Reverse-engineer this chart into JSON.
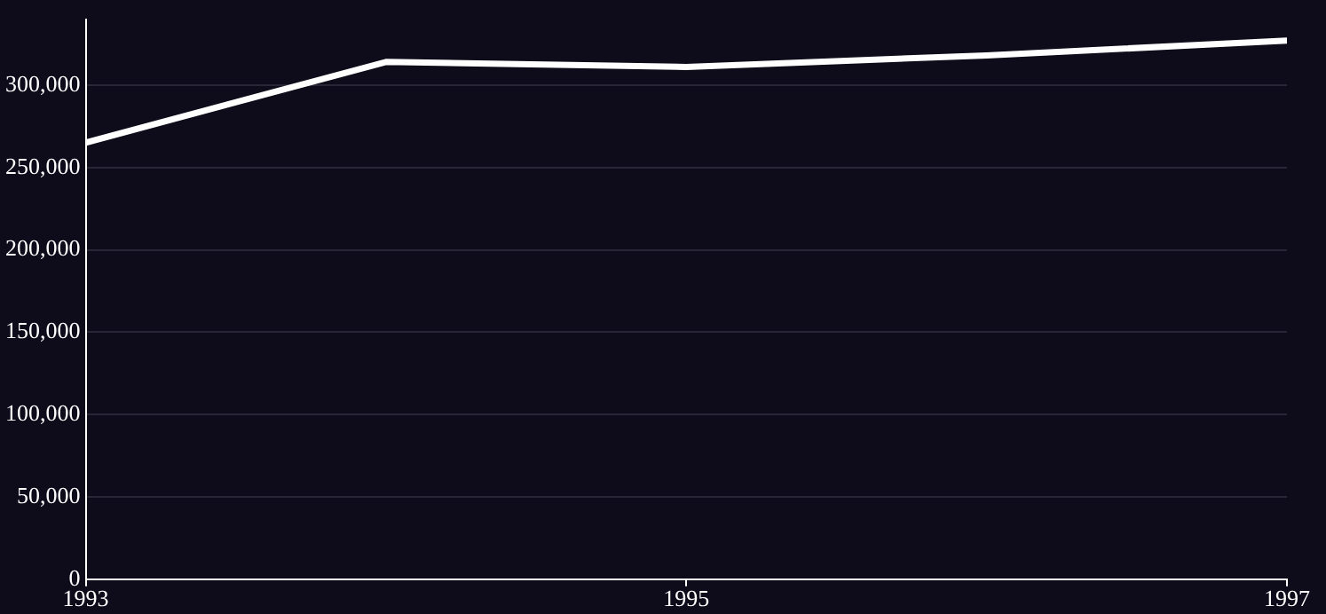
{
  "chart_data": {
    "type": "line",
    "x": [
      1993,
      1994,
      1995,
      1996,
      1997
    ],
    "series": [
      {
        "color": "#ffffff",
        "values": [
          265000,
          314000,
          311000,
          318000,
          327000
        ]
      }
    ],
    "xlim": [
      1993,
      1997
    ],
    "xticks": [
      {
        "value": 1993,
        "label": "1993"
      },
      {
        "value": 1995,
        "label": "1995"
      },
      {
        "value": 1997,
        "label": "1997"
      }
    ],
    "ylim": [
      0,
      340000
    ],
    "yticks": [
      0,
      {
        "value": 50000,
        "label": "50,000"
      },
      {
        "value": 100000,
        "label": "100,000"
      },
      {
        "value": 150000,
        "label": "150,000"
      },
      {
        "value": 200000,
        "label": "200,000"
      },
      {
        "value": 250000,
        "label": "250,000"
      },
      {
        "value": 300000,
        "label": "300,000"
      }
    ],
    "grid": "y",
    "legend": false,
    "marker": "none",
    "line_style": "solid"
  }
}
